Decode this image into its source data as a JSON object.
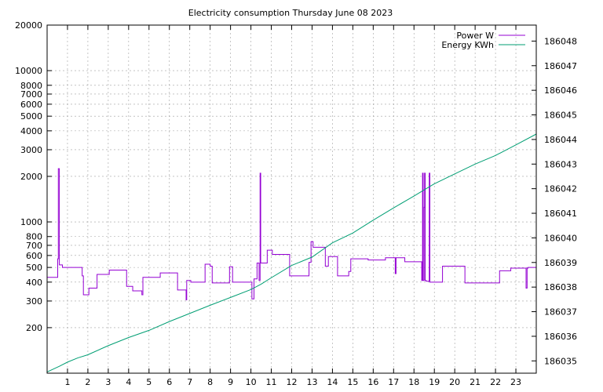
{
  "chart_data": {
    "type": "line",
    "title": "Electricity consumption Thursday June 08 2023",
    "xlabel": "",
    "ylabel": "",
    "y2label": "",
    "grid": true,
    "legend_position": "top-right",
    "x_range": [
      0,
      24
    ],
    "x_ticks": [
      1,
      2,
      3,
      4,
      5,
      6,
      7,
      8,
      9,
      10,
      11,
      12,
      13,
      14,
      15,
      16,
      17,
      18,
      19,
      20,
      21,
      22,
      23
    ],
    "y_scale": "log",
    "y_range": [
      100,
      20000
    ],
    "y_ticks": [
      {
        "value": 200,
        "label": "200"
      },
      {
        "value": 300,
        "label": "300"
      },
      {
        "value": 400,
        "label": "400"
      },
      {
        "value": 500,
        "label": "500"
      },
      {
        "value": 600,
        "label": "600"
      },
      {
        "value": 700,
        "label": "700"
      },
      {
        "value": 800,
        "label": "800"
      },
      {
        "value": 1000,
        "label": "1000"
      },
      {
        "value": 2000,
        "label": "2000"
      },
      {
        "value": 3000,
        "label": "3000"
      },
      {
        "value": 4000,
        "label": "4000"
      },
      {
        "value": 5000,
        "label": "5000"
      },
      {
        "value": 6000,
        "label": "6000"
      },
      {
        "value": 7000,
        "label": "7000"
      },
      {
        "value": 8000,
        "label": "8000"
      },
      {
        "value": 10000,
        "label": "10000"
      },
      {
        "value": 20000,
        "label": "20000"
      }
    ],
    "y2_scale": "linear",
    "y2_range": [
      186034.5,
      186048.65
    ],
    "y2_ticks": [
      {
        "value": 186035,
        "label": "186035"
      },
      {
        "value": 186036,
        "label": "186036"
      },
      {
        "value": 186037,
        "label": "186037"
      },
      {
        "value": 186038,
        "label": "186038"
      },
      {
        "value": 186039,
        "label": "186039"
      },
      {
        "value": 186040,
        "label": "186040"
      },
      {
        "value": 186041,
        "label": "186041"
      },
      {
        "value": 186042,
        "label": "186042"
      },
      {
        "value": 186043,
        "label": "186043"
      },
      {
        "value": 186044,
        "label": "186044"
      },
      {
        "value": 186045,
        "label": "186045"
      },
      {
        "value": 186046,
        "label": "186046"
      },
      {
        "value": 186047,
        "label": "186047"
      },
      {
        "value": 186048,
        "label": "186048"
      }
    ],
    "series": [
      {
        "name": "Power W",
        "axis": "y",
        "color": "#9400d3",
        "step": true,
        "points": [
          [
            0.0,
            430
          ],
          [
            0.5,
            430
          ],
          [
            0.52,
            570
          ],
          [
            0.55,
            2250
          ],
          [
            0.6,
            520
          ],
          [
            0.75,
            500
          ],
          [
            1.7,
            500
          ],
          [
            1.72,
            440
          ],
          [
            1.78,
            330
          ],
          [
            2.05,
            365
          ],
          [
            2.45,
            450
          ],
          [
            3.05,
            480
          ],
          [
            3.85,
            480
          ],
          [
            3.9,
            375
          ],
          [
            4.2,
            350
          ],
          [
            4.65,
            330
          ],
          [
            4.7,
            430
          ],
          [
            5.5,
            430
          ],
          [
            5.55,
            460
          ],
          [
            6.35,
            460
          ],
          [
            6.4,
            355
          ],
          [
            6.8,
            355
          ],
          [
            6.82,
            305
          ],
          [
            6.85,
            410
          ],
          [
            7.05,
            400
          ],
          [
            7.7,
            400
          ],
          [
            7.75,
            525
          ],
          [
            8.0,
            510
          ],
          [
            8.1,
            395
          ],
          [
            8.9,
            395
          ],
          [
            8.95,
            505
          ],
          [
            9.1,
            400
          ],
          [
            10.0,
            400
          ],
          [
            10.05,
            310
          ],
          [
            10.15,
            420
          ],
          [
            10.3,
            535
          ],
          [
            10.4,
            410
          ],
          [
            10.45,
            2100
          ],
          [
            10.48,
            535
          ],
          [
            10.8,
            650
          ],
          [
            11.05,
            610
          ],
          [
            11.85,
            610
          ],
          [
            11.9,
            440
          ],
          [
            12.8,
            440
          ],
          [
            12.85,
            540
          ],
          [
            12.95,
            740
          ],
          [
            13.05,
            680
          ],
          [
            13.6,
            680
          ],
          [
            13.65,
            510
          ],
          [
            13.8,
            590
          ],
          [
            14.2,
            590
          ],
          [
            14.25,
            440
          ],
          [
            14.75,
            440
          ],
          [
            14.8,
            470
          ],
          [
            14.9,
            570
          ],
          [
            15.7,
            570
          ],
          [
            15.75,
            560
          ],
          [
            16.55,
            560
          ],
          [
            16.6,
            580
          ],
          [
            17.05,
            580
          ],
          [
            17.08,
            455
          ],
          [
            17.12,
            580
          ],
          [
            17.5,
            580
          ],
          [
            17.55,
            545
          ],
          [
            18.35,
            545
          ],
          [
            18.38,
            410
          ],
          [
            18.42,
            2100
          ],
          [
            18.45,
            410
          ],
          [
            18.5,
            1250
          ],
          [
            18.52,
            2100
          ],
          [
            18.55,
            410
          ],
          [
            18.6,
            405
          ],
          [
            18.75,
            2100
          ],
          [
            18.78,
            400
          ],
          [
            19.35,
            400
          ],
          [
            19.4,
            510
          ],
          [
            20.4,
            510
          ],
          [
            20.5,
            395
          ],
          [
            22.15,
            395
          ],
          [
            22.2,
            475
          ],
          [
            22.7,
            475
          ],
          [
            22.75,
            495
          ],
          [
            23.45,
            495
          ],
          [
            23.5,
            365
          ],
          [
            23.55,
            495
          ],
          [
            23.6,
            500
          ],
          [
            24.0,
            500
          ]
        ]
      },
      {
        "name": "Energy KWh",
        "axis": "y2",
        "color": "#009e73",
        "step": false,
        "points": [
          [
            0.0,
            186034.55
          ],
          [
            0.6,
            186034.78
          ],
          [
            1.0,
            186034.95
          ],
          [
            1.5,
            186035.12
          ],
          [
            2.0,
            186035.25
          ],
          [
            3.0,
            186035.62
          ],
          [
            4.0,
            186035.95
          ],
          [
            5.0,
            186036.24
          ],
          [
            6.0,
            186036.6
          ],
          [
            7.0,
            186036.93
          ],
          [
            8.0,
            186037.26
          ],
          [
            9.0,
            186037.58
          ],
          [
            10.0,
            186037.9
          ],
          [
            10.5,
            186038.12
          ],
          [
            11.0,
            186038.38
          ],
          [
            12.0,
            186038.88
          ],
          [
            13.0,
            186039.22
          ],
          [
            14.0,
            186039.8
          ],
          [
            15.0,
            186040.2
          ],
          [
            16.0,
            186040.72
          ],
          [
            17.0,
            186041.22
          ],
          [
            18.0,
            186041.7
          ],
          [
            18.7,
            186042.05
          ],
          [
            19.0,
            186042.2
          ],
          [
            20.0,
            186042.6
          ],
          [
            21.0,
            186043.0
          ],
          [
            22.0,
            186043.35
          ],
          [
            23.0,
            186043.78
          ],
          [
            24.0,
            186044.22
          ]
        ]
      }
    ]
  }
}
